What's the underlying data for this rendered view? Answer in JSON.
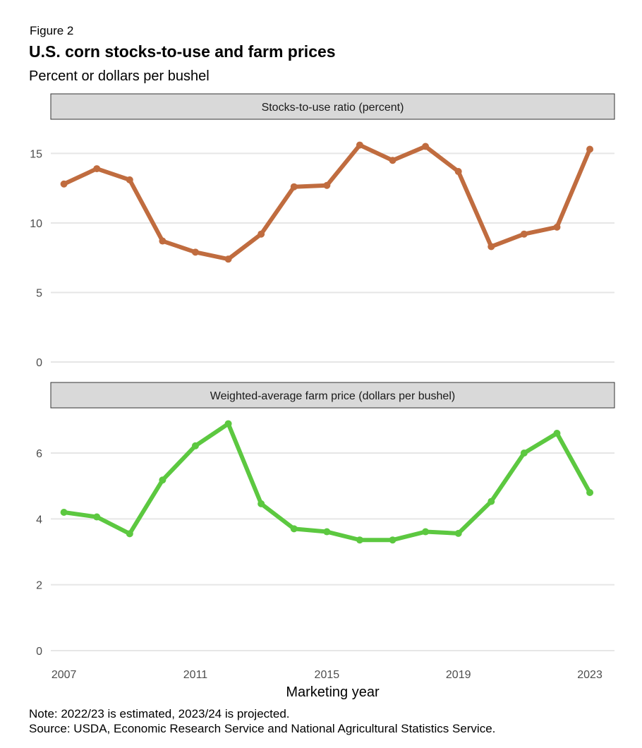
{
  "header": {
    "figure_label": "Figure 2",
    "title": "U.S. corn stocks-to-use and farm prices",
    "subtitle": "Percent or dollars per bushel"
  },
  "footer": {
    "note": "Note: 2022/23 is estimated, 2023/24 is projected.",
    "source": "Source: USDA, Economic Research Service and National Agricultural Statistics Service."
  },
  "chart_data": [
    {
      "type": "line",
      "panel": "Stocks-to-use ratio (percent)",
      "color": "#c06c3f",
      "x": [
        2007,
        2008,
        2009,
        2010,
        2011,
        2012,
        2013,
        2014,
        2015,
        2016,
        2017,
        2018,
        2019,
        2020,
        2021,
        2022,
        2023
      ],
      "series": [
        {
          "values": [
            12.8,
            13.9,
            13.1,
            8.7,
            7.9,
            7.4,
            9.2,
            12.6,
            12.7,
            15.6,
            14.5,
            15.5,
            13.7,
            8.3,
            9.2,
            9.7,
            15.3
          ]
        }
      ],
      "ylim": [
        0,
        17
      ],
      "yticks": [
        0,
        5,
        10,
        15
      ],
      "grid": true
    },
    {
      "type": "line",
      "panel": "Weighted-average farm price (dollars per bushel)",
      "color": "#5cc840",
      "x": [
        2007,
        2008,
        2009,
        2010,
        2011,
        2012,
        2013,
        2014,
        2015,
        2016,
        2017,
        2018,
        2019,
        2020,
        2021,
        2022,
        2023
      ],
      "series": [
        {
          "values": [
            4.2,
            4.06,
            3.55,
            5.18,
            6.22,
            6.89,
            4.46,
            3.7,
            3.61,
            3.36,
            3.36,
            3.61,
            3.56,
            4.53,
            6.0,
            6.6,
            4.8
          ]
        }
      ],
      "ylim": [
        0,
        7.2
      ],
      "yticks": [
        0,
        2,
        4,
        6
      ],
      "grid": true
    }
  ],
  "x_axis": {
    "label": "Marketing year",
    "ticks": [
      2007,
      2011,
      2015,
      2019,
      2023
    ],
    "range": [
      2006.6,
      2023.75
    ]
  }
}
